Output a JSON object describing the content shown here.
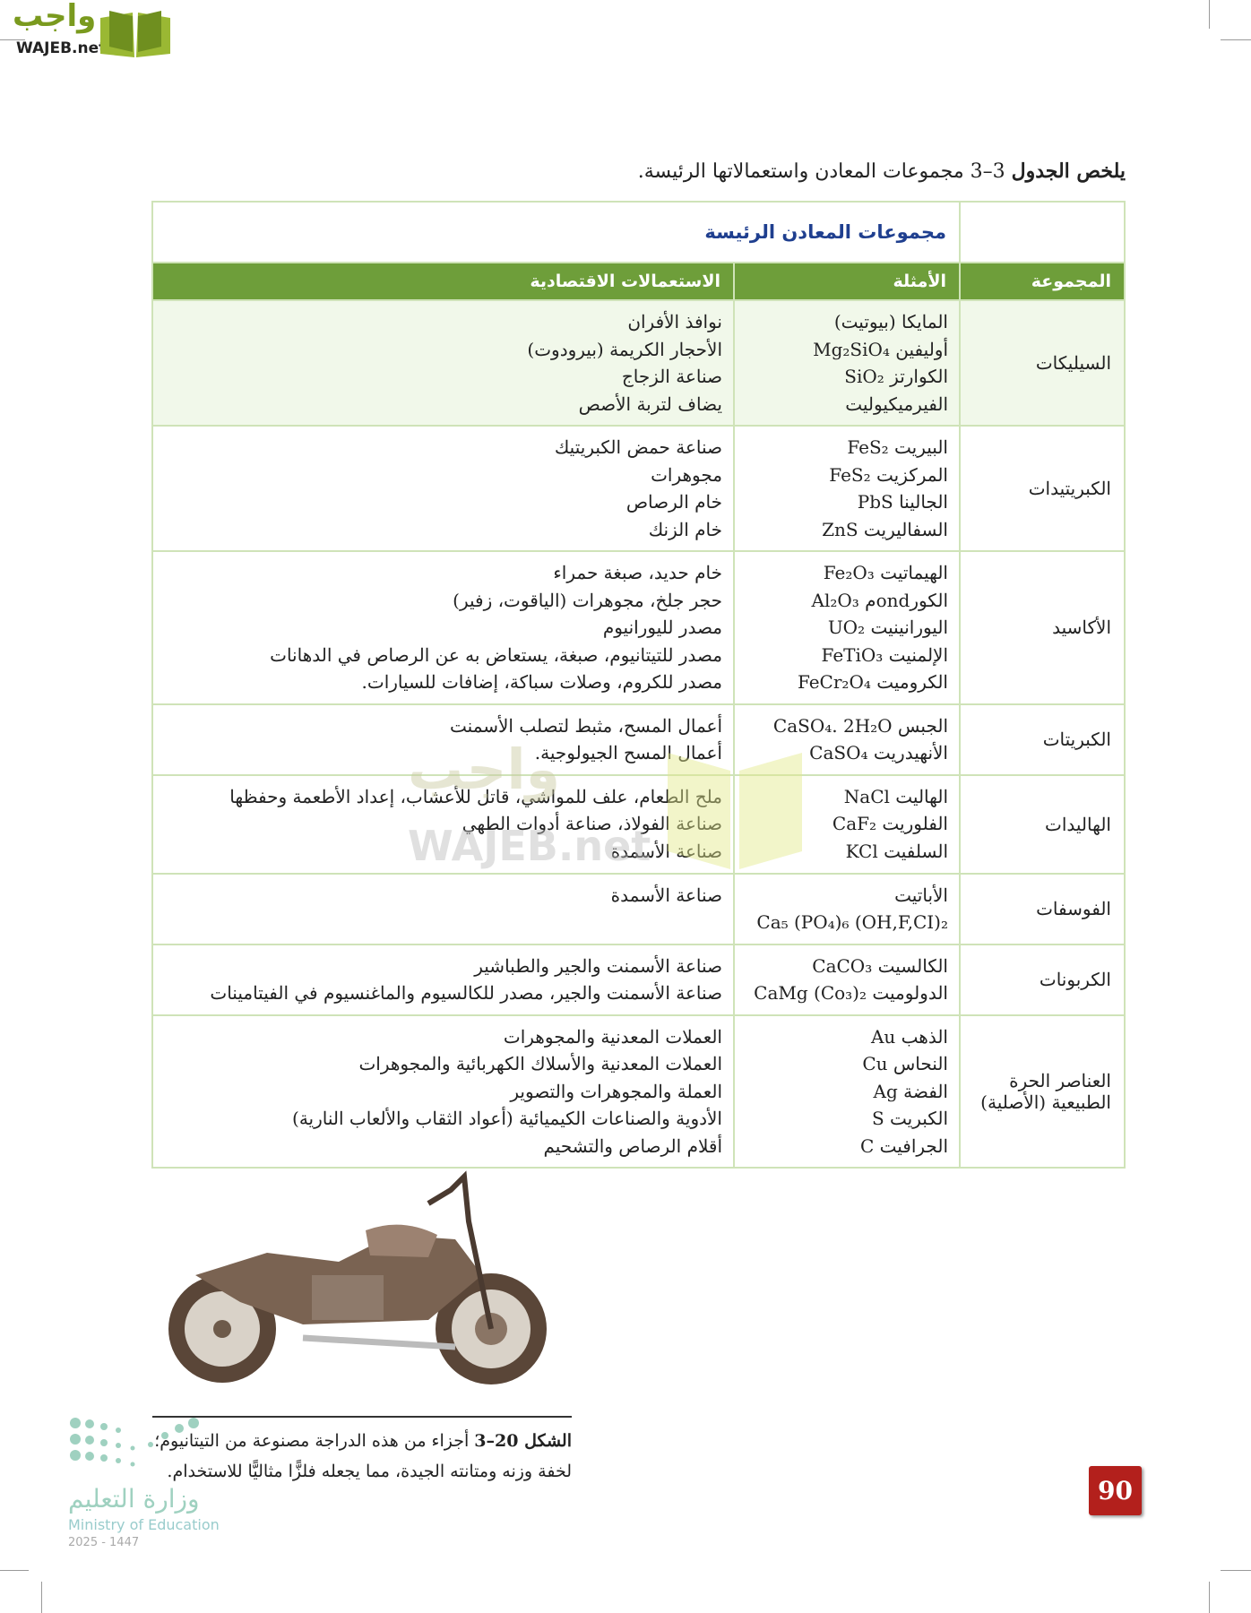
{
  "watermark": {
    "ar": "واجب",
    "en": "WAJEB.net"
  },
  "intro": {
    "bold": "يلخص الجدول",
    "rest": " 3–3 مجموعات المعادن واستعمالاتها الرئيسة."
  },
  "table": {
    "number": "الجدول 3–3",
    "title": "مجموعات المعادن الرئيسة",
    "headers": {
      "group": "المجموعة",
      "examples": "الأمثلة",
      "uses": "الاستعمالات الاقتصادية"
    },
    "rows": [
      {
        "group": "السيليكات",
        "examples": [
          "المايكا (بيوتيت)",
          "أوليفين Mg₂SiO₄",
          "الكوارتز SiO₂",
          "الفيرميكيوليت"
        ],
        "uses": [
          "نوافذ الأفران",
          "الأحجار الكريمة (بيرودوت)",
          "صناعة الزجاج",
          "يضاف لتربة الأصص"
        ]
      },
      {
        "group": "الكبريتيدات",
        "examples": [
          "البيريت FeS₂",
          "المركزيت FeS₂",
          "الجالينا PbS",
          "السفاليريت ZnS"
        ],
        "uses": [
          "صناعة حمض الكبريتيك",
          "مجوهرات",
          "خام الرصاص",
          "خام الزنك"
        ]
      },
      {
        "group": "الأكاسيد",
        "examples": [
          "الهيماتيت Fe₂O₃",
          "الكورondم Al₂O₃",
          "اليورانينيت UO₂",
          "الإلمنيت FeTiO₃",
          "الكروميت FeCr₂O₄"
        ],
        "uses": [
          "خام حديد، صبغة حمراء",
          "حجر جلخ، مجوهرات (الياقوت، زفير)",
          "مصدر لليورانيوم",
          "مصدر للتيتانيوم، صبغة، يستعاض به عن الرصاص في الدهانات",
          "مصدر للكروم، وصلات سباكة، إضافات للسيارات."
        ]
      },
      {
        "group": "الكبريتات",
        "examples": [
          "الجبس CaSO₄. 2H₂O",
          "الأنهيدريت CaSO₄"
        ],
        "uses": [
          "أعمال المسح، مثبط لتصلب الأسمنت",
          "أعمال المسح الجيولوجية."
        ]
      },
      {
        "group": "الهاليدات",
        "examples": [
          "الهاليت NaCl",
          "الفلوريت CaF₂",
          "السلفيت KCl"
        ],
        "uses": [
          "ملح الطعام، علف للمواشي، قاتل للأعشاب، إعداد الأطعمة وحفظها",
          "صناعة الفولاذ، صناعة أدوات الطهي",
          "صناعة الأسمدة"
        ]
      },
      {
        "group": "الفوسفات",
        "examples": [
          "الأباتيت",
          "Ca₅ (PO₄)₆ (OH,F,CI)₂"
        ],
        "uses": [
          "صناعة الأسمدة"
        ]
      },
      {
        "group": "الكربونات",
        "examples": [
          "الكالسيت CaCO₃",
          "الدولوميت CaMg (Co₃)₂"
        ],
        "uses": [
          "صناعة الأسمنت والجير والطباشير",
          "صناعة الأسمنت والجير، مصدر للكالسيوم والماغنسيوم في الفيتامينات"
        ]
      },
      {
        "group": "العناصر الحرة الطبيعية (الأصلية)",
        "examples": [
          "الذهب Au",
          "النحاس Cu",
          "الفضة Ag",
          "الكبريت S",
          "الجرافيت C"
        ],
        "uses": [
          "العملات المعدنية والمجوهرات",
          "العملات المعدنية والأسلاك الكهربائية والمجوهرات",
          "العملة والمجوهرات والتصوير",
          "الأدوية والصناعات الكيميائية (أعواد الثقاب والألعاب النارية)",
          "أقلام الرصاص والتشحيم"
        ]
      }
    ]
  },
  "figure": {
    "label": "الشكل 20–3",
    "text": " أجزاء من هذه الدراجة مصنوعة من التيتانيوم؛ لخفة وزنه ومتانته الجيدة، مما يجعله فلزًّا مثاليًّا للاستخدام."
  },
  "page_number": "90",
  "ministry": {
    "ar": "وزارة التعليم",
    "en": "Ministry of Education",
    "year": "2025 - 1447"
  },
  "colors": {
    "title_blue": "#1f3f8f",
    "header_green": "#6e9e3a",
    "page_red": "#b3201c"
  }
}
